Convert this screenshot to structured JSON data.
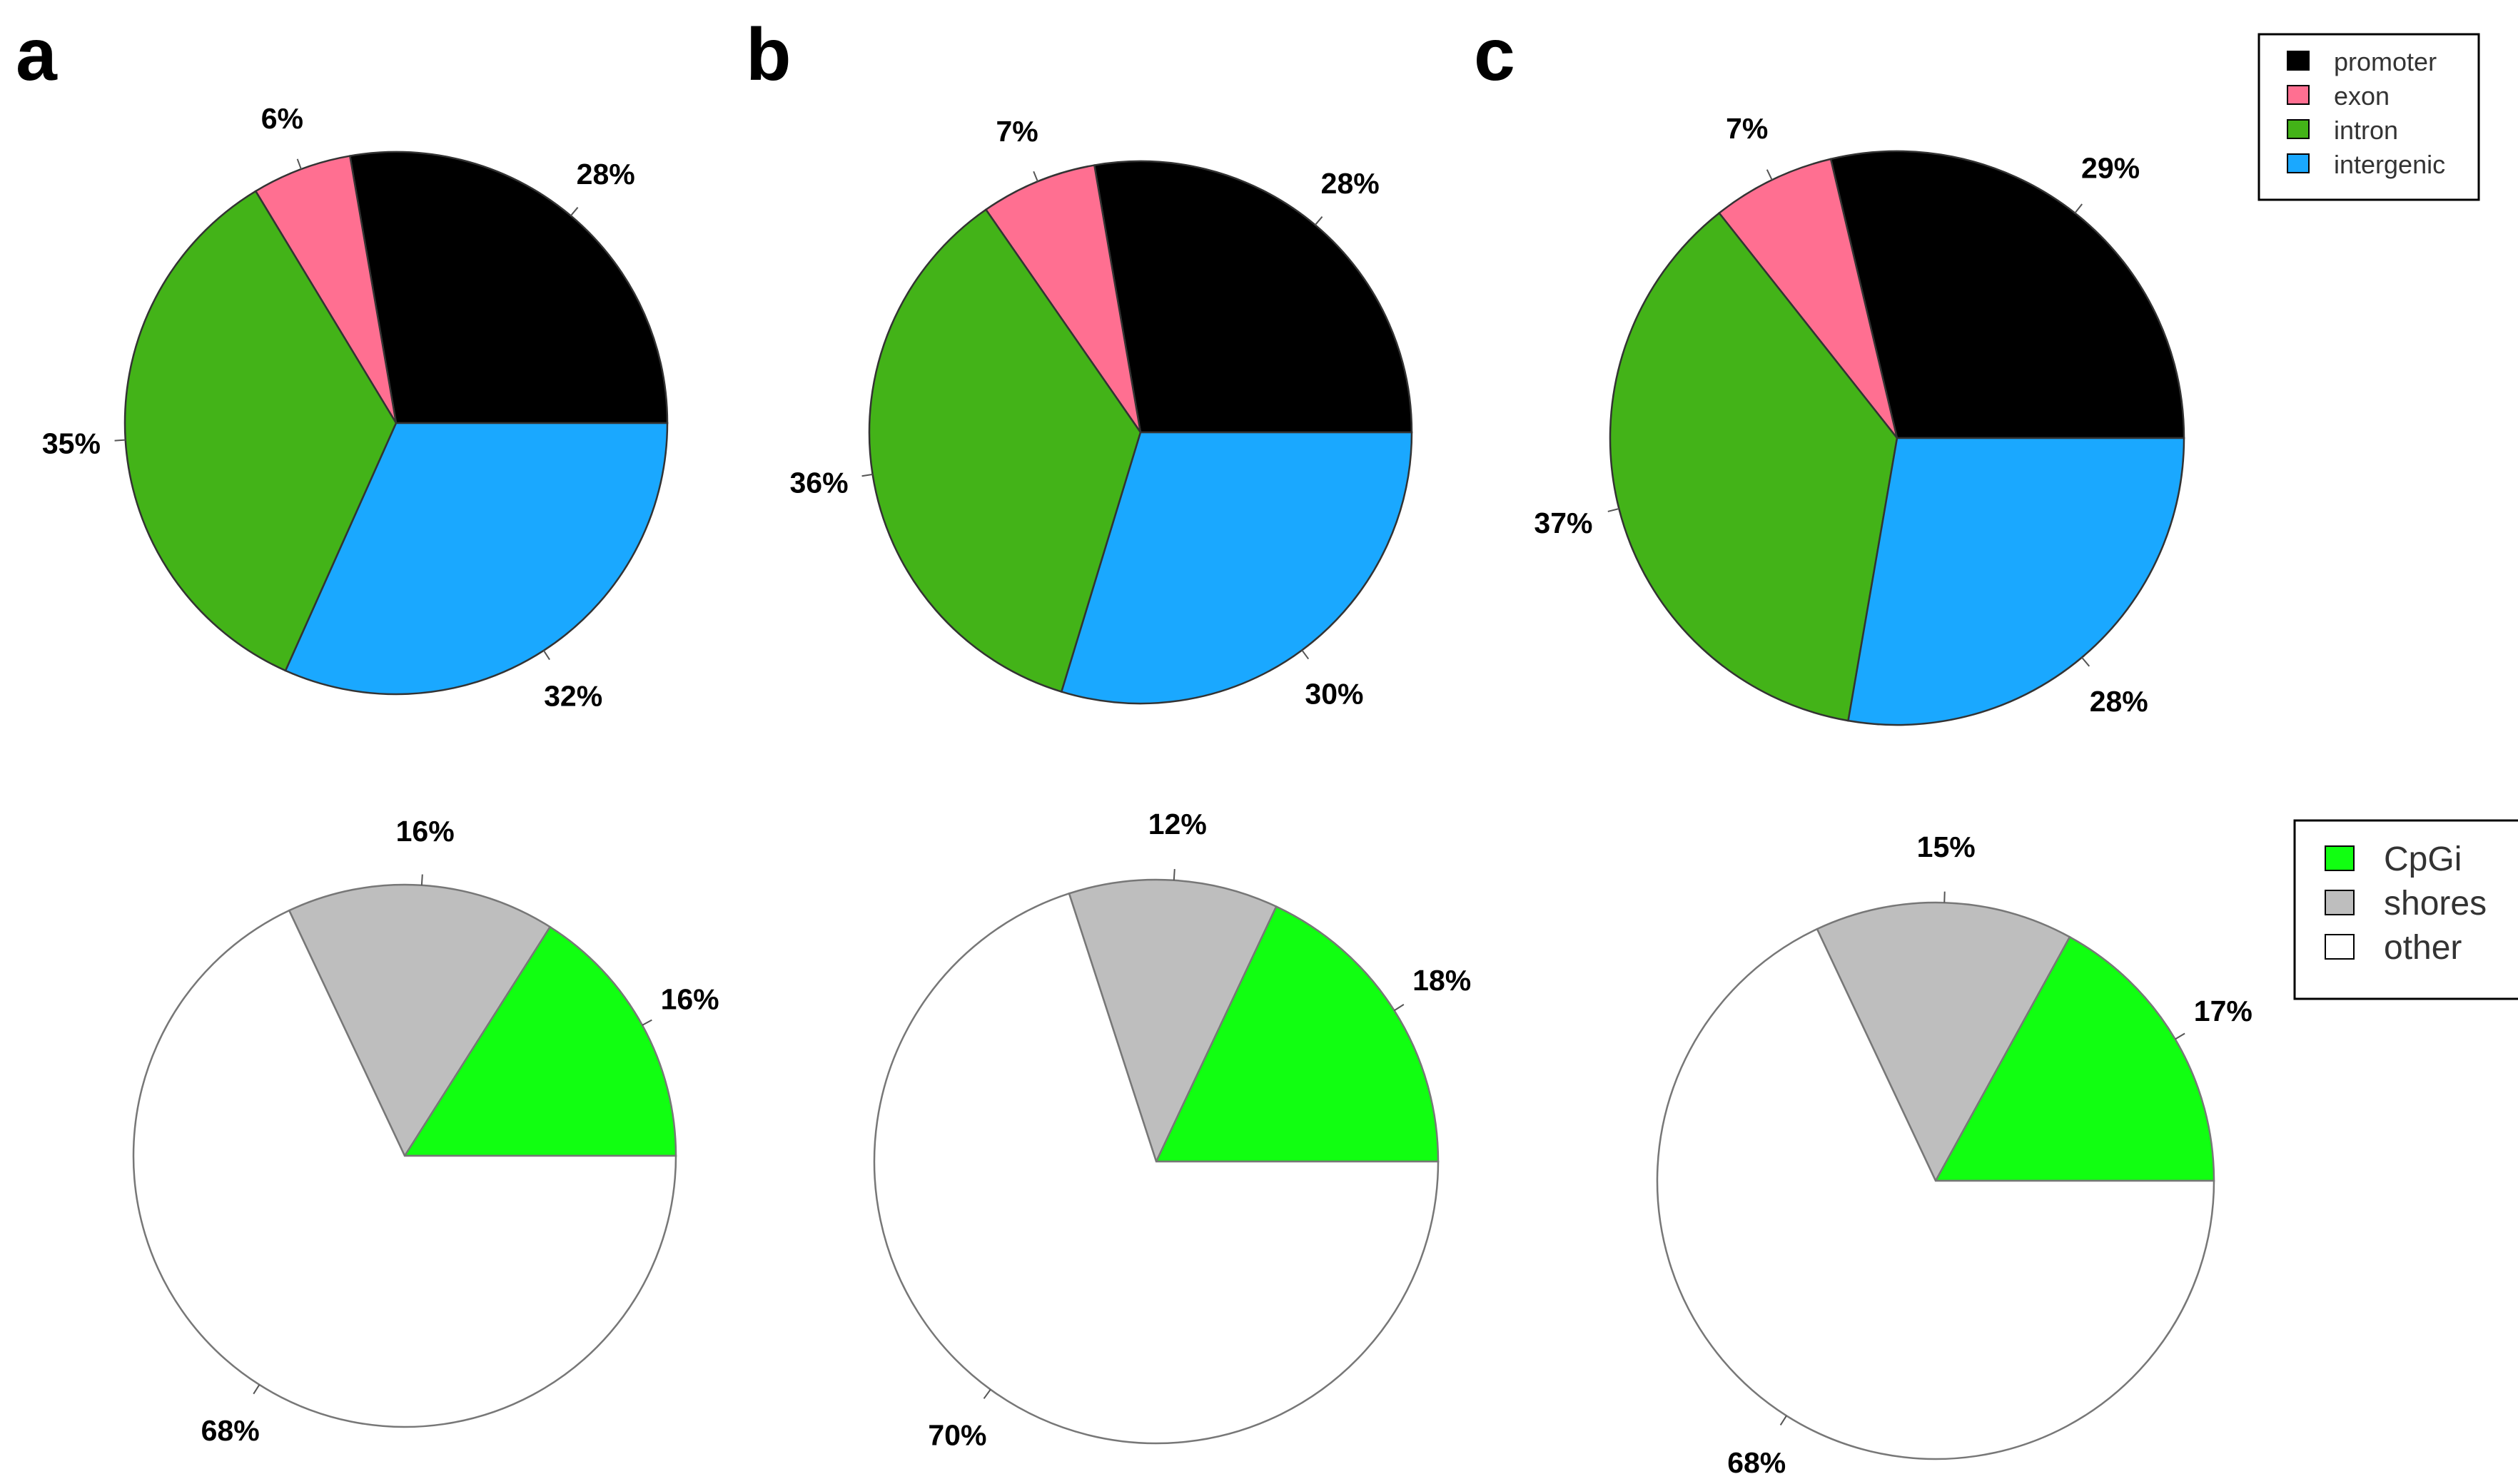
{
  "panel_labels": [
    "a",
    "b",
    "c"
  ],
  "legend_genomic": {
    "entries": [
      {
        "label": "promoter",
        "color": "#000000"
      },
      {
        "label": "exon",
        "color": "#FF6F91"
      },
      {
        "label": "intron",
        "color": "#43B318"
      },
      {
        "label": "intergenic",
        "color": "#1AA8FF"
      }
    ]
  },
  "legend_cpg": {
    "entries": [
      {
        "label": "CpGi",
        "color": "#11FF11"
      },
      {
        "label": "shores",
        "color": "#BEBEBE"
      },
      {
        "label": "other",
        "color": "#FFFFFF"
      }
    ]
  },
  "chart_data": [
    {
      "type": "pie",
      "panel": "a",
      "categories": [
        "promoter",
        "exon",
        "intron",
        "intergenic"
      ],
      "values": [
        28,
        6,
        35,
        32
      ],
      "labels": [
        "28%",
        "6%",
        "35%",
        "32%"
      ]
    },
    {
      "type": "pie",
      "panel": "b",
      "categories": [
        "promoter",
        "exon",
        "intron",
        "intergenic"
      ],
      "values": [
        28,
        7,
        36,
        30
      ],
      "labels": [
        "28%",
        "7%",
        "36%",
        "30%"
      ]
    },
    {
      "type": "pie",
      "panel": "c",
      "categories": [
        "promoter",
        "exon",
        "intron",
        "intergenic"
      ],
      "values": [
        29,
        7,
        37,
        28
      ],
      "labels": [
        "29%",
        "7%",
        "37%",
        "28%"
      ]
    },
    {
      "type": "pie",
      "panel": "a",
      "categories": [
        "CpGi",
        "shores",
        "other"
      ],
      "values": [
        16,
        16,
        68
      ],
      "labels": [
        "16%",
        "16%",
        "68%"
      ]
    },
    {
      "type": "pie",
      "panel": "b",
      "categories": [
        "CpGi",
        "shores",
        "other"
      ],
      "values": [
        18,
        12,
        70
      ],
      "labels": [
        "18%",
        "12%",
        "70%"
      ]
    },
    {
      "type": "pie",
      "panel": "c",
      "categories": [
        "CpGi",
        "shores",
        "other"
      ],
      "values": [
        17,
        15,
        68
      ],
      "labels": [
        "17%",
        "15%",
        "68%"
      ]
    }
  ]
}
